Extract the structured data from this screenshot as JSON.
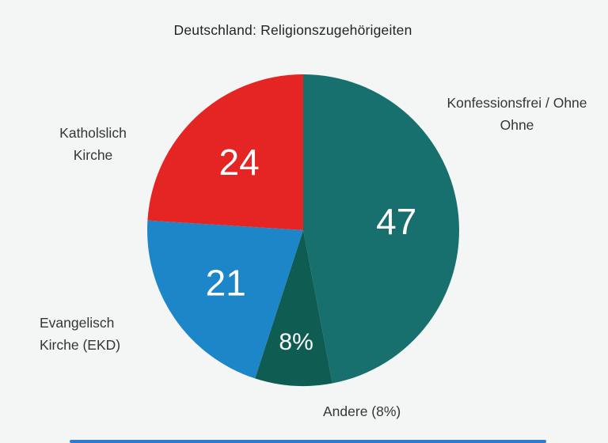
{
  "page": {
    "background": "#f3f6f4",
    "accent_bar_color": "#2e7bd2"
  },
  "chart_data": {
    "type": "pie",
    "title": "Deutschland: Religionszugehörigeiten",
    "direction": "clockwise",
    "start_angle_deg": 0,
    "total": 100,
    "legend_position": "around",
    "slices": [
      {
        "id": "konfessionsfrei",
        "label": "Konfessionsfrei / Ohne Ohne",
        "value": 47,
        "display_value": "47",
        "color": "#17706d"
      },
      {
        "id": "andere",
        "label": "Andere (8%)",
        "value": 8,
        "display_value": "8%",
        "color": "#0f5c53"
      },
      {
        "id": "evangelisch",
        "label": "Evangelisch Kirche (EKD)",
        "value": 21,
        "display_value": "21",
        "color": "#1d86c8"
      },
      {
        "id": "katholisch",
        "label": "Katholslich Kirche",
        "value": 24,
        "display_value": "24",
        "color": "#e42524"
      }
    ]
  },
  "outer_labels": {
    "konfessionsfrei": {
      "line1": "Konfessionsfrei / Ohne",
      "line2": "Ohne"
    },
    "katholisch": {
      "line1": "Katholslich",
      "line2": "Kirche"
    },
    "evangelisch": {
      "line1": "Evangelisch",
      "line2": "Kirche (EKD)"
    },
    "andere": {
      "text": "Andere (8%)"
    }
  }
}
